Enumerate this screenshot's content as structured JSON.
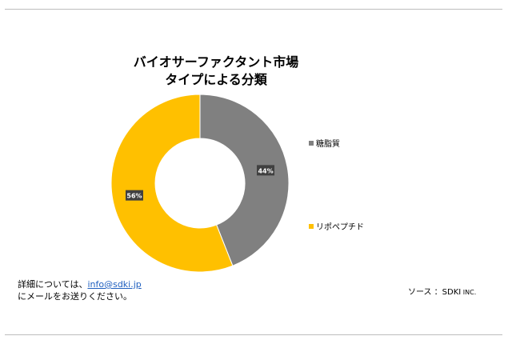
{
  "header": {
    "title_line1": "バイオサーファクタント市場",
    "title_line2": "タイプによる分類"
  },
  "chart_data": {
    "type": "pie",
    "donut": true,
    "categories": [
      "糖脂質",
      "リポペプチド"
    ],
    "values": [
      44,
      56
    ],
    "data_labels": [
      "44%",
      "56%"
    ],
    "colors": [
      "#808080",
      "#ffc000"
    ],
    "legend_position": "right"
  },
  "footer": {
    "contact_prefix": "詳細については、",
    "contact_email": "info@sdki.jp",
    "contact_suffix": "にメールをお送りください。",
    "source_label": "ソース ：SDKI",
    "source_inc": " INC."
  }
}
